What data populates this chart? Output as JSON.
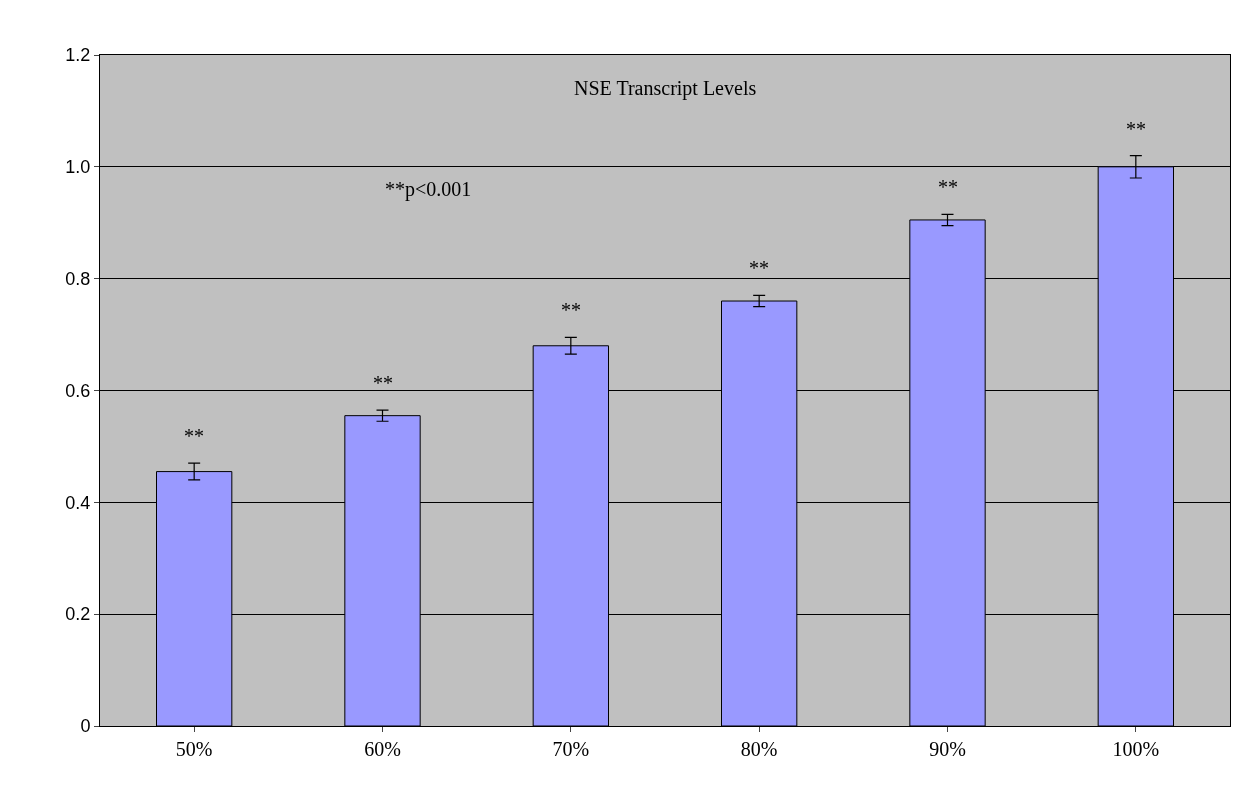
{
  "chart_data": {
    "type": "bar",
    "title": "NSE Transcript Levels",
    "categories": [
      "50%",
      "60%",
      "70%",
      "80%",
      "90%",
      "100%"
    ],
    "values": [
      0.455,
      0.555,
      0.68,
      0.76,
      0.905,
      1.0
    ],
    "errors": [
      0.015,
      0.01,
      0.015,
      0.01,
      0.01,
      0.02
    ],
    "color": "#9999ff",
    "ylim": [
      0,
      1.2
    ],
    "yticks": [
      0,
      0.2,
      0.4,
      0.6,
      0.8,
      {
        "value": 1.0,
        "label": "1.0"
      },
      1.2
    ],
    "grid": "y",
    "annotations": [
      "**",
      "**",
      "**",
      "**",
      "**",
      "**",
      "**p<0.001"
    ]
  }
}
